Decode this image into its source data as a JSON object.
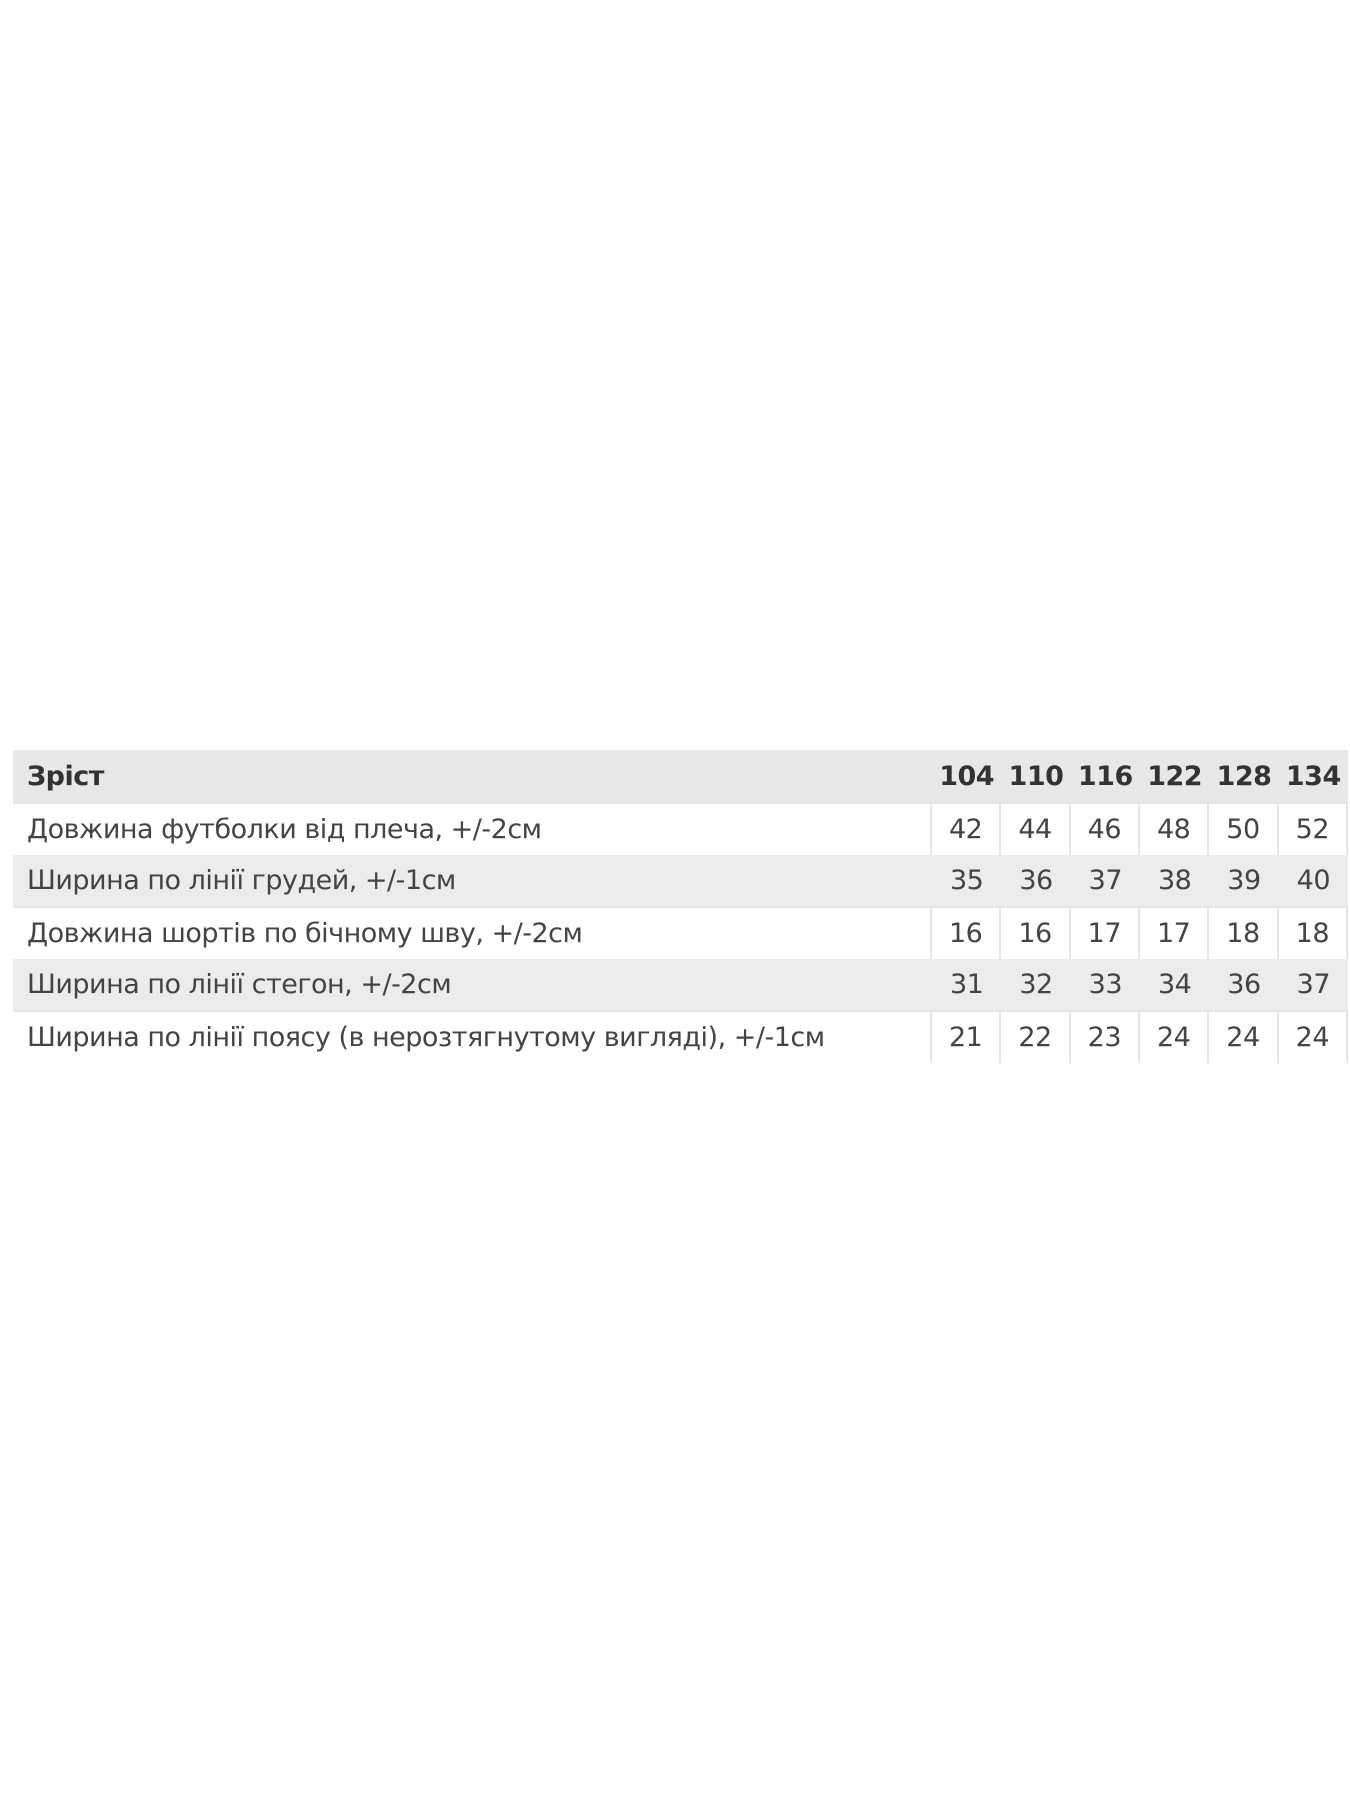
{
  "table": {
    "header": {
      "label": "Зріст",
      "sizes": [
        "104",
        "110",
        "116",
        "122",
        "128",
        "134"
      ]
    },
    "rows": [
      {
        "label": "Довжина футболки від плеча, +/-2см",
        "values": [
          "42",
          "44",
          "46",
          "48",
          "50",
          "52"
        ]
      },
      {
        "label": "Ширина по лінії грудей, +/-1см",
        "values": [
          "35",
          "36",
          "37",
          "38",
          "39",
          "40"
        ]
      },
      {
        "label": "Довжина шортів по бічному шву, +/-2см",
        "values": [
          "16",
          "16",
          "17",
          "17",
          "18",
          "18"
        ]
      },
      {
        "label": "Ширина по лінії стегон, +/-2см",
        "values": [
          "31",
          "32",
          "33",
          "34",
          "36",
          "37"
        ]
      },
      {
        "label": "Ширина по лінії поясу (в нерозтягнутому вигляді), +/-1см",
        "values": [
          "21",
          "22",
          "23",
          "24",
          "24",
          "24"
        ]
      }
    ]
  }
}
